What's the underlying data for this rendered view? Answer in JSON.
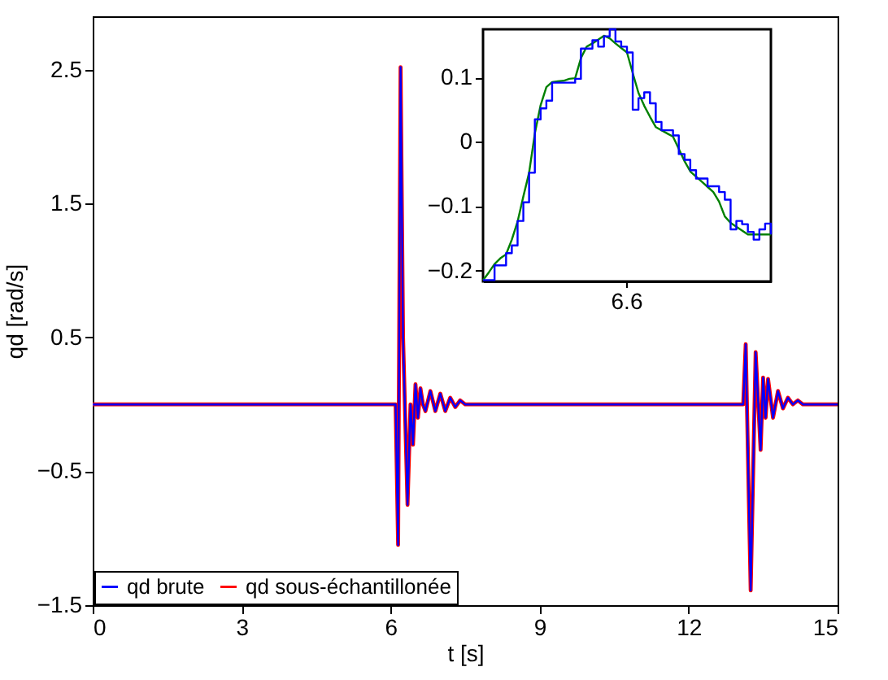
{
  "chart_data": [
    {
      "type": "line",
      "xlabel": "t [s]",
      "ylabel": "qd [rad/s]",
      "xlim": [
        0,
        15
      ],
      "xticks": [
        0,
        3,
        6,
        9,
        12,
        15
      ],
      "ylim": [
        -1.5,
        2.9
      ],
      "yticks": [
        -1.5,
        -0.5,
        0.5,
        1.5,
        2.5
      ],
      "grid": false,
      "legend": "bottom left",
      "series": [
        {
          "name": "qd brute",
          "color": "#0000ff",
          "x": [
            0,
            6.1,
            6.15,
            6.2,
            6.25,
            6.34,
            6.4,
            6.45,
            6.5,
            6.55,
            6.6,
            6.65,
            6.7,
            6.8,
            6.9,
            7.0,
            7.1,
            7.2,
            7.3,
            7.4,
            7.5,
            13.1,
            13.15,
            13.25,
            13.35,
            13.45,
            13.5,
            13.55,
            13.6,
            13.7,
            13.8,
            13.9,
            14.0,
            14.1,
            14.2,
            14.3,
            15
          ],
          "values": [
            0,
            0,
            -1.05,
            2.52,
            0.5,
            -0.75,
            0,
            -0.3,
            0.15,
            -0.1,
            0.12,
            0,
            -0.05,
            0.1,
            -0.05,
            0.08,
            -0.05,
            0.05,
            -0.02,
            0.03,
            0,
            0,
            0.45,
            -1.39,
            0.39,
            -0.34,
            0.2,
            -0.1,
            0.19,
            -0.1,
            0.1,
            -0.03,
            0.05,
            0,
            0.03,
            0,
            0
          ]
        },
        {
          "name": "qd sous-échantillonée",
          "color": "#ff0000",
          "x": [
            0,
            6.1,
            6.15,
            6.2,
            6.25,
            6.34,
            6.4,
            6.45,
            6.5,
            6.55,
            6.6,
            6.65,
            6.7,
            6.8,
            6.9,
            7.0,
            7.1,
            7.2,
            7.3,
            7.4,
            7.5,
            13.1,
            13.15,
            13.25,
            13.35,
            13.45,
            13.5,
            13.55,
            13.6,
            13.7,
            13.8,
            13.9,
            14.0,
            14.1,
            14.2,
            14.3,
            15
          ],
          "values": [
            0,
            0,
            -1.05,
            2.52,
            0.5,
            -0.75,
            0,
            -0.3,
            0.15,
            -0.1,
            0.12,
            0,
            -0.05,
            0.1,
            -0.05,
            0.08,
            -0.05,
            0.05,
            -0.02,
            0.03,
            0,
            0,
            0.45,
            -1.39,
            0.39,
            -0.34,
            0.2,
            -0.1,
            0.19,
            -0.1,
            0.1,
            -0.03,
            0.05,
            0,
            0.03,
            0,
            0
          ]
        }
      ]
    },
    {
      "type": "line",
      "categories": [
        null,
        null,
        null,
        null,
        null,
        null,
        null,
        null,
        null,
        null,
        null,
        null,
        null,
        null,
        null,
        null,
        null,
        null,
        null,
        null,
        null,
        null,
        null,
        null,
        null,
        null,
        null,
        null,
        null,
        null,
        null,
        null,
        null,
        null,
        null,
        null,
        null,
        null,
        null,
        null,
        null,
        null,
        null,
        null,
        null,
        null,
        null,
        null,
        null,
        null,
        null
      ],
      "annotations": [
        "6.6"
      ],
      "ylim": [
        -0.217,
        0.175
      ],
      "yticks": [
        -0.2,
        -0.1,
        0,
        0.1
      ],
      "grid": false,
      "legend": false,
      "series": [
        {
          "type": "step",
          "color": "#0000ff",
          "values": [
            -0.215,
            -0.215,
            -0.192,
            -0.192,
            -0.173,
            -0.161,
            -0.123,
            -0.094,
            -0.048,
            0.035,
            0.052,
            0.064,
            0.092,
            0.092,
            0.092,
            0.092,
            0.098,
            0.145,
            0.145,
            0.158,
            0.148,
            0.164,
            0.175,
            0.156,
            0.148,
            0.139,
            0.05,
            0.068,
            0.077,
            0.06,
            0.031,
            0.018,
            0.018,
            0.01,
            -0.019,
            -0.028,
            -0.044,
            -0.057,
            -0.057,
            -0.069,
            -0.069,
            -0.078,
            -0.09,
            -0.136,
            -0.123,
            -0.128,
            -0.14,
            -0.152,
            -0.136,
            -0.127,
            -0.144
          ]
        },
        {
          "type": "line",
          "color": "#008000",
          "values": [
            -0.215,
            -0.203,
            -0.19,
            -0.181,
            -0.175,
            -0.152,
            -0.124,
            -0.085,
            -0.048,
            0.013,
            0.057,
            0.085,
            0.093,
            0.094,
            0.095,
            0.098,
            0.099,
            0.13,
            0.148,
            0.153,
            0.159,
            0.165,
            0.161,
            0.153,
            0.146,
            0.139,
            0.107,
            0.076,
            0.056,
            0.039,
            0.023,
            0.018,
            0.013,
            0.008,
            -0.011,
            -0.03,
            -0.046,
            -0.054,
            -0.062,
            -0.07,
            -0.078,
            -0.093,
            -0.116,
            -0.126,
            -0.132,
            -0.138,
            -0.144,
            -0.144,
            -0.144,
            -0.144,
            -0.144
          ]
        }
      ]
    }
  ]
}
